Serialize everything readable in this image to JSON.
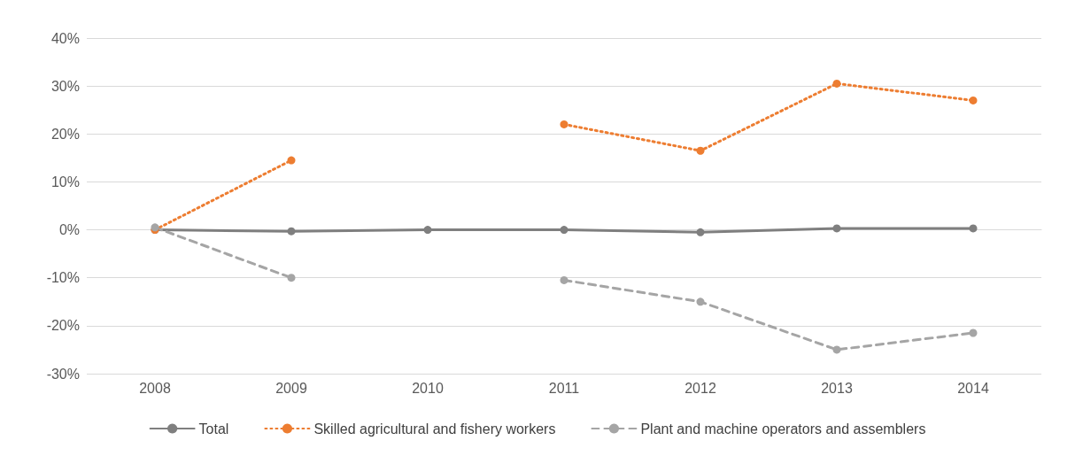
{
  "chart_data": {
    "type": "line",
    "categories": [
      "2008",
      "2009",
      "2010",
      "2011",
      "2012",
      "2013",
      "2014"
    ],
    "series": [
      {
        "name": "Total",
        "color": "#7f7f7f",
        "line_style": "solid",
        "values": [
          0,
          -0.3,
          0,
          0,
          -0.5,
          0.3,
          0.3
        ]
      },
      {
        "name": "Skilled agricultural and fishery workers",
        "color": "#ed7d31",
        "line_style": "dotted",
        "values": [
          0,
          14.5,
          null,
          22,
          16.5,
          30.5,
          27
        ]
      },
      {
        "name": "Plant and machine operators and assemblers",
        "color": "#a5a5a5",
        "line_style": "dashed",
        "values": [
          0.5,
          -10,
          null,
          -10.5,
          -15,
          -25,
          -21.5
        ]
      }
    ],
    "ylim": [
      -30,
      40
    ],
    "yticks": [
      {
        "value": -30,
        "label": "-30%"
      },
      {
        "value": -20,
        "label": "-20%"
      },
      {
        "value": -10,
        "label": "-10%"
      },
      {
        "value": 0,
        "label": "0%"
      },
      {
        "value": 10,
        "label": "10%"
      },
      {
        "value": 20,
        "label": "20%"
      },
      {
        "value": 30,
        "label": "30%"
      },
      {
        "value": 40,
        "label": "40%"
      }
    ],
    "grid": "y",
    "legend": "bottom",
    "marker": "circle"
  }
}
